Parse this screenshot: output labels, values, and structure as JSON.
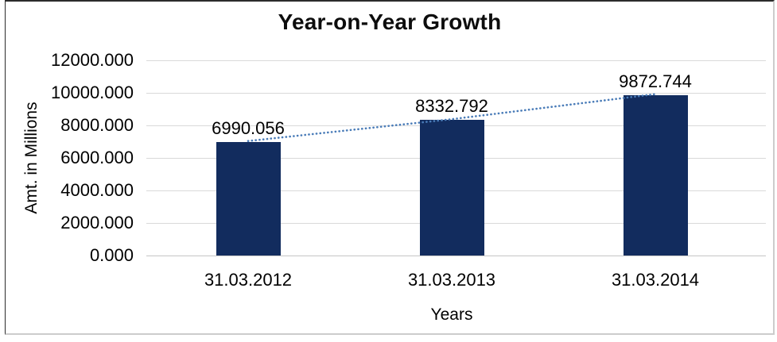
{
  "chart_data": {
    "type": "bar",
    "title": "Year-on-Year Growth",
    "categories": [
      "31.03.2012",
      "31.03.2013",
      "31.03.2014"
    ],
    "values": [
      6990.056,
      8332.792,
      9872.744
    ],
    "data_labels": [
      "6990.056",
      "8332.792",
      "9872.744"
    ],
    "xlabel": "Years",
    "ylabel": "Amt. in Millions",
    "ylim": [
      0,
      12000
    ],
    "ytick_interval": 2000,
    "ytick_labels": [
      "0.000",
      "2000.000",
      "4000.000",
      "6000.000",
      "8000.000",
      "10000.000",
      "12000.000"
    ],
    "grid": true,
    "legend": "none",
    "trendline": {
      "type": "linear",
      "style": "dotted",
      "color": "#4a7cb8"
    },
    "colors": {
      "bar": "#122c5e",
      "gridline": "#d9d9d9",
      "axis_line": "#c6c6c6",
      "title_text": "#0d0d0d",
      "label_text": "#000000"
    }
  }
}
